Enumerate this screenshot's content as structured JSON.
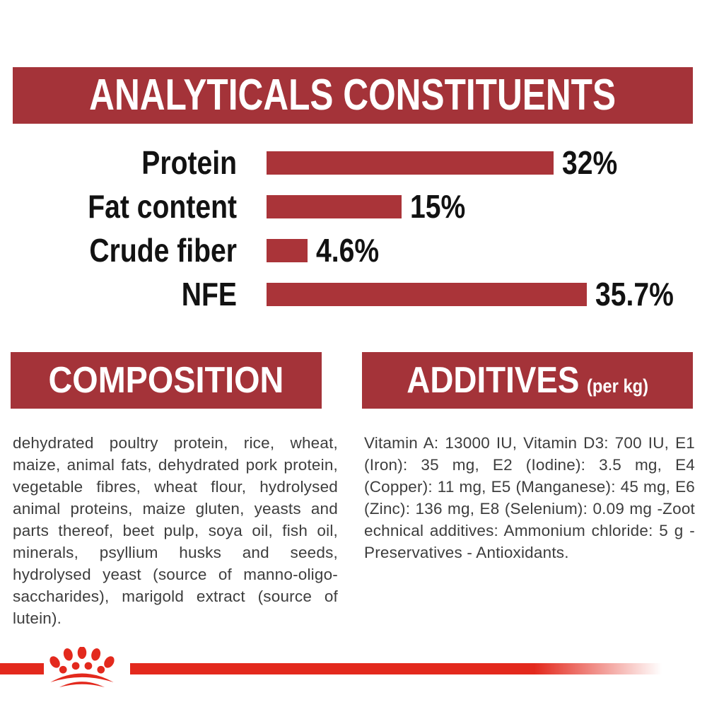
{
  "colors": {
    "banner_red": "#A43339",
    "bar_red": "#AA3439",
    "bright_red": "#E3291D",
    "body_text": "#3D3D3D",
    "chart_text": "#121212",
    "banner_text": "#FFFFFF",
    "background": "#FFFFFF"
  },
  "header": {
    "title": "ANALYTICALS CONSTITUENTS"
  },
  "chart_data": {
    "type": "bar",
    "orientation": "horizontal",
    "title": "ANALYTICALS CONSTITUENTS",
    "categories": [
      "Protein",
      "Fat content",
      "Crude fiber",
      "NFE"
    ],
    "values": [
      32,
      15,
      4.6,
      35.7
    ],
    "value_labels": [
      "32%",
      "15%",
      "4.6%",
      "35.7%"
    ],
    "unit": "%",
    "xlim": [
      0,
      40
    ],
    "bar_color": "#AA3439",
    "grid": false,
    "legend": false
  },
  "composition": {
    "title": "COMPOSITION",
    "text": "dehydrated poultry protein, rice, wheat, maize, animal fats, dehydrated pork protein, vegetable fibres, wheat flour, hydrolysed animal proteins, maize gluten, yeasts and parts thereof, beet pulp, soya oil, fish oil, minerals, psyllium husks and seeds, hydrolysed yeast (source of manno-oligo-saccharides), marigold extract (source of lutein)."
  },
  "additives": {
    "title": "ADDITIVES",
    "subtitle": "(per kg)",
    "text": "Vitamin A: 13000 IU, Vitamin D3: 700 IU, E1 (Iron): 35 mg, E2 (Iodine): 3.5 mg, E4 (Copper): 11 mg, E5 (Manganese): 45 mg, E6 (Zinc): 136 mg, E8 (Selenium): 0.09 mg -Zoot echnical additives: Ammonium chloride: 5 g - Preservatives - Antioxidants."
  },
  "footer": {
    "logo": "royal-canin-crown-logo"
  }
}
